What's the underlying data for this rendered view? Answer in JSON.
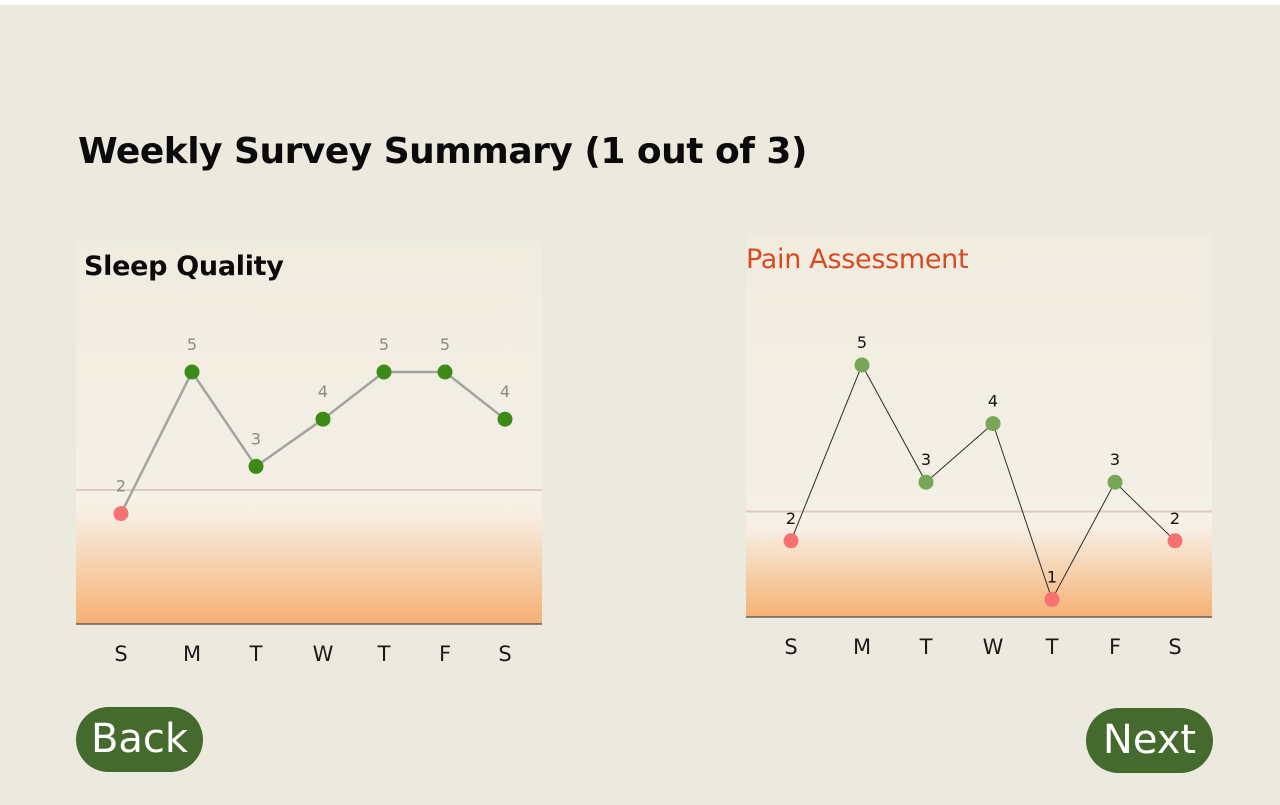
{
  "header": {
    "title": "Weekly Survey Summary (1 out of 3)"
  },
  "navigation": {
    "back_label": "Back",
    "next_label": "Next"
  },
  "colors": {
    "background": "#ECEADE",
    "button": "#456A2D",
    "good_point": "#3E8A16",
    "good_point_light": "#76A656",
    "bad_point": "#F77171",
    "pain_title": "#D94A1E",
    "threshold_line": "#E2C9C4"
  },
  "chart_data": [
    {
      "type": "line",
      "title": "Sleep Quality",
      "categories": [
        "S",
        "M",
        "T",
        "W",
        "T",
        "F",
        "S"
      ],
      "values": [
        2,
        5,
        3,
        4,
        5,
        5,
        4
      ],
      "data_labels": [
        "2",
        "5",
        "3",
        "4",
        "5",
        "5",
        "4"
      ],
      "threshold": 2.5,
      "xlabel": "",
      "ylabel": "",
      "grid": false
    },
    {
      "type": "line",
      "title": "Pain Assessment",
      "categories": [
        "S",
        "M",
        "T",
        "W",
        "T",
        "F",
        "S"
      ],
      "values": [
        2,
        5,
        3,
        4,
        1,
        3,
        2
      ],
      "data_labels": [
        "2",
        "5",
        "3",
        "4",
        "1",
        "3",
        "2"
      ],
      "threshold": 2.5,
      "xlabel": "",
      "ylabel": "",
      "grid": false
    }
  ]
}
